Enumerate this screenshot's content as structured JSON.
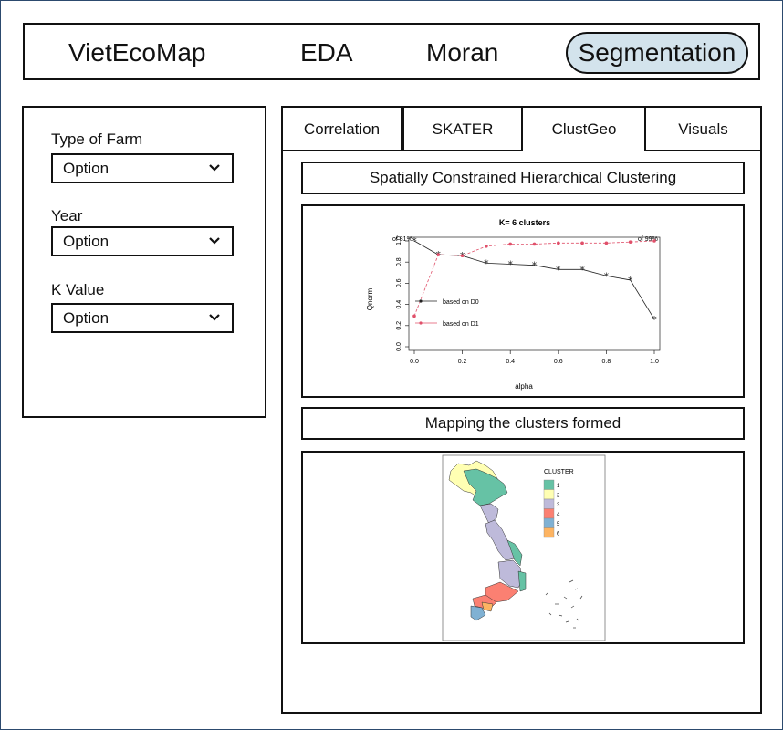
{
  "nav": {
    "brand": "VietEcoMap",
    "items": [
      "EDA",
      "Moran"
    ],
    "active": "Segmentation"
  },
  "sidebar": {
    "fields": [
      {
        "label": "Type of Farm",
        "value": "Option"
      },
      {
        "label": "Year",
        "value": "Option"
      },
      {
        "label": "K Value",
        "value": "Option"
      }
    ]
  },
  "tabs": [
    "Correlation",
    "SKATER",
    "ClustGeo",
    "Visuals"
  ],
  "active_tab": "ClustGeo",
  "sections": {
    "chart_title": "Spatially Constrained Hierarchical Clustering",
    "map_title": "Mapping the clusters formed"
  },
  "chart_data": {
    "type": "line",
    "title": "K= 6 clusters",
    "xlabel": "alpha",
    "ylabel": "Qnorm",
    "xlim": [
      0,
      1
    ],
    "ylim": [
      0,
      1
    ],
    "x": [
      0,
      0.1,
      0.2,
      0.3,
      0.4,
      0.5,
      0.6,
      0.7,
      0.8,
      0.9,
      1.0
    ],
    "x_ticks": [
      "0.0",
      "0.2",
      "0.4",
      "0.6",
      "0.8",
      "1.0"
    ],
    "y_ticks": [
      "0.0",
      "0.2",
      "0.4",
      "0.6",
      "0.8",
      "1.0"
    ],
    "annotations": {
      "left": "of 81%",
      "right": "of 99%"
    },
    "series": [
      {
        "name": "based on D0",
        "color": "#222222",
        "values": [
          1.0,
          0.87,
          0.86,
          0.79,
          0.78,
          0.77,
          0.73,
          0.73,
          0.67,
          0.63,
          0.26
        ]
      },
      {
        "name": "based on D1",
        "color": "#e0506a",
        "values": [
          0.29,
          0.87,
          0.86,
          0.95,
          0.97,
          0.97,
          0.98,
          0.98,
          0.98,
          0.99,
          1.0
        ]
      }
    ],
    "legend_position": "left"
  },
  "map": {
    "legend_title": "CLUSTER",
    "legend": [
      {
        "label": "1",
        "color": "#66c2a5"
      },
      {
        "label": "2",
        "color": "#ffffb3"
      },
      {
        "label": "3",
        "color": "#bebada"
      },
      {
        "label": "4",
        "color": "#fb8072"
      },
      {
        "label": "5",
        "color": "#80b1d3"
      },
      {
        "label": "6",
        "color": "#fdb462"
      }
    ]
  }
}
